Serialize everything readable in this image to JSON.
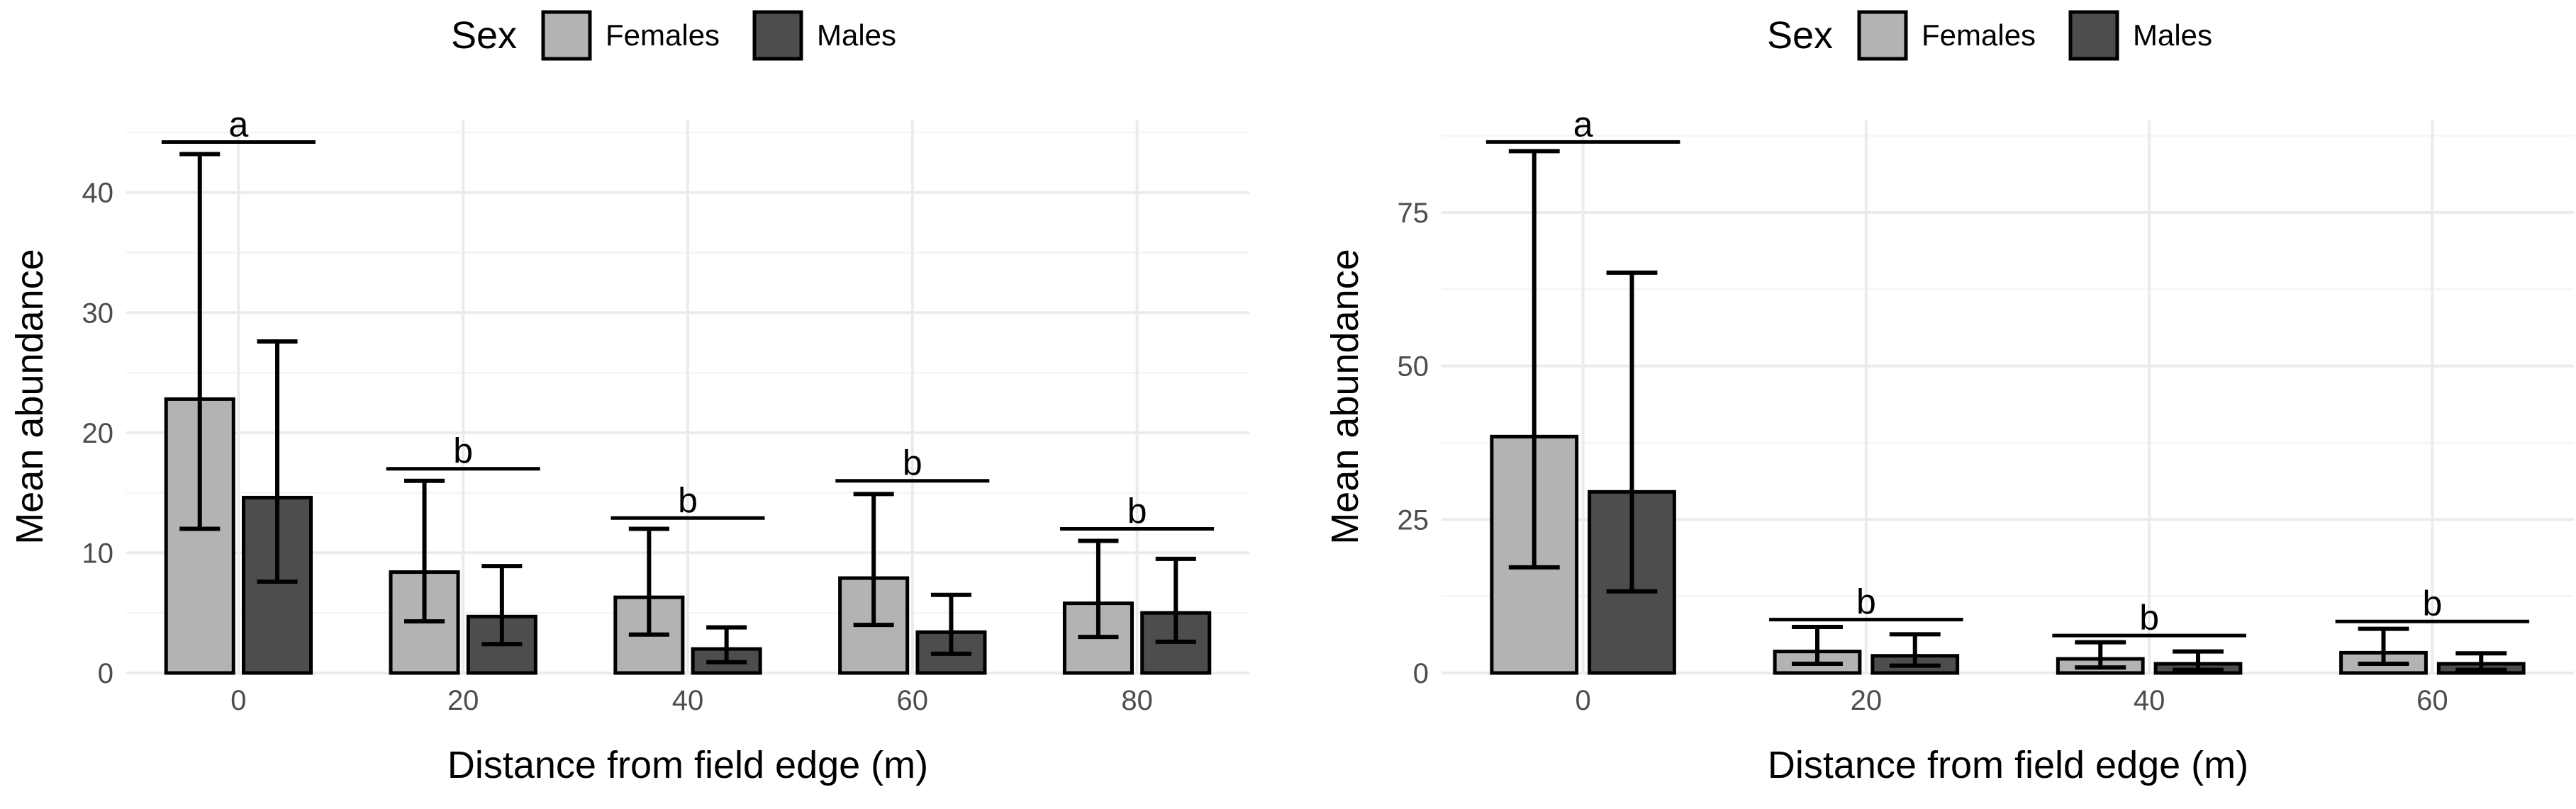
{
  "legend": {
    "title": "Sex",
    "entries": [
      {
        "label": "Females",
        "color": "#b3b3b3"
      },
      {
        "label": "Males",
        "color": "#4d4d4d"
      }
    ]
  },
  "chart_data": [
    {
      "type": "bar",
      "xlabel": "Distance from field edge (m)",
      "ylabel": "Mean abundance",
      "categories": [
        "0",
        "20",
        "40",
        "60",
        "80"
      ],
      "ylim": [
        0,
        46
      ],
      "yticks": [
        0,
        10,
        20,
        30,
        40
      ],
      "legend_position": "top",
      "series": [
        {
          "name": "Females",
          "values": [
            22.8,
            8.4,
            6.3,
            7.9,
            5.8
          ],
          "error_low": [
            12.0,
            4.3,
            3.2,
            4.0,
            3.0
          ],
          "error_high": [
            43.2,
            16.0,
            12.0,
            14.9,
            11.0
          ]
        },
        {
          "name": "Males",
          "values": [
            14.6,
            4.7,
            2.0,
            3.4,
            5.0
          ],
          "error_low": [
            7.6,
            2.4,
            0.9,
            1.6,
            2.6
          ],
          "error_high": [
            27.6,
            8.9,
            3.8,
            6.5,
            9.5
          ]
        }
      ],
      "significance": [
        {
          "category": "0",
          "label": "a",
          "y": 44.2
        },
        {
          "category": "20",
          "label": "b",
          "y": 17.0
        },
        {
          "category": "40",
          "label": "b",
          "y": 12.9
        },
        {
          "category": "60",
          "label": "b",
          "y": 16.0
        },
        {
          "category": "80",
          "label": "b",
          "y": 12.0
        }
      ]
    },
    {
      "type": "bar",
      "xlabel": "Distance from field edge (m)",
      "ylabel": "Mean abundance",
      "categories": [
        "0",
        "20",
        "40",
        "60"
      ],
      "ylim": [
        0,
        90
      ],
      "yticks": [
        0,
        25,
        50,
        75
      ],
      "legend_position": "top",
      "series": [
        {
          "name": "Females",
          "values": [
            38.5,
            3.5,
            2.3,
            3.3
          ],
          "error_low": [
            17.2,
            1.5,
            0.9,
            1.5
          ],
          "error_high": [
            85.0,
            7.5,
            5.0,
            7.2
          ]
        },
        {
          "name": "Males",
          "values": [
            29.5,
            2.8,
            1.5,
            1.5
          ],
          "error_low": [
            13.3,
            1.2,
            0.5,
            0.5
          ],
          "error_high": [
            65.2,
            6.3,
            3.5,
            3.2
          ]
        }
      ],
      "significance": [
        {
          "category": "0",
          "label": "a",
          "y": 86.5
        },
        {
          "category": "20",
          "label": "b",
          "y": 8.7
        },
        {
          "category": "40",
          "label": "b",
          "y": 6.1
        },
        {
          "category": "60",
          "label": "b",
          "y": 8.4
        }
      ]
    }
  ]
}
